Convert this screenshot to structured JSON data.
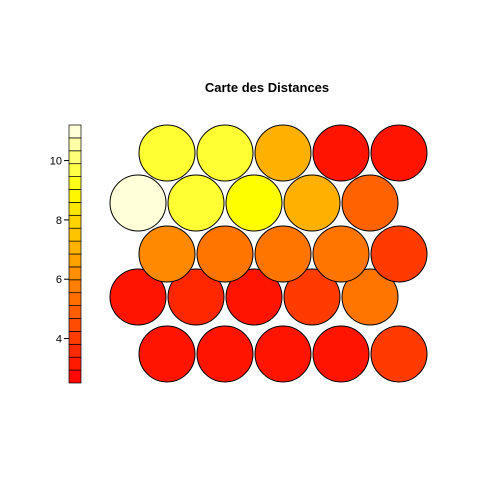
{
  "chart_data": {
    "type": "heatmap",
    "subtype": "som-hexagonal-distance-map",
    "title": "Carte des Distances",
    "grid": {
      "rows": 5,
      "cols": 5,
      "topology": "hexagonal"
    },
    "rows": [
      [
        3.0,
        3.0,
        3.0,
        3.0,
        4.0
      ],
      [
        3.0,
        3.5,
        3.0,
        4.0,
        5.5
      ],
      [
        6.0,
        5.5,
        5.5,
        5.5,
        4.0
      ],
      [
        11.0,
        9.5,
        9.0,
        7.0,
        5.0
      ],
      [
        9.5,
        9.5,
        7.0,
        3.0,
        3.0
      ]
    ],
    "row_order": "bottom-to-top",
    "colorbar": {
      "palette": "heat",
      "min": 2.5,
      "max": 11.2,
      "steps": 20,
      "ticks": [
        4,
        6,
        8,
        10
      ],
      "tick_labels": [
        "4",
        "6",
        "8",
        "10"
      ]
    },
    "colors": {
      "cell_stroke": "#000000",
      "background": "#ffffff"
    },
    "grid_lines": false,
    "legend_position": "left"
  }
}
